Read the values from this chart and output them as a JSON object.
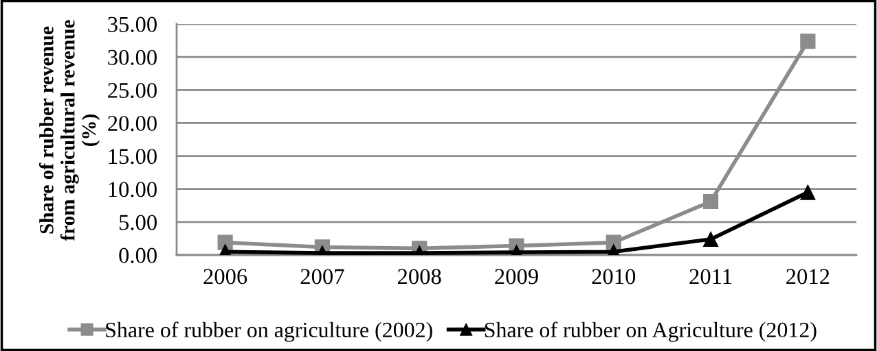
{
  "chart_data": {
    "type": "line",
    "ylabel": "Share of rubber revenue\nfrom agricultural revenue\n(%)",
    "categories": [
      "2006",
      "2007",
      "2008",
      "2009",
      "2010",
      "2011",
      "2012"
    ],
    "series": [
      {
        "name": "Share of rubber on agriculture (2002)",
        "color": "#8c8c8c",
        "marker": "square",
        "values": [
          1.9,
          1.2,
          1.0,
          1.4,
          1.9,
          8.1,
          32.4
        ]
      },
      {
        "name": "Share of rubber on Agriculture (2012)",
        "color": "#000000",
        "marker": "triangle",
        "values": [
          0.5,
          0.3,
          0.3,
          0.4,
          0.5,
          2.4,
          9.5
        ]
      }
    ],
    "ylim": [
      0,
      35
    ],
    "yticks": [
      {
        "value": 0,
        "label": "0.00"
      },
      {
        "value": 5,
        "label": "5.00"
      },
      {
        "value": 10,
        "label": "10.00"
      },
      {
        "value": 15,
        "label": "15.00"
      },
      {
        "value": 20,
        "label": "20.00"
      },
      {
        "value": 25,
        "label": "25.00"
      },
      {
        "value": 30,
        "label": "30.00"
      },
      {
        "value": 35,
        "label": "35.00"
      }
    ],
    "grid": "y",
    "legend": "bottom",
    "line_style": "solid"
  }
}
